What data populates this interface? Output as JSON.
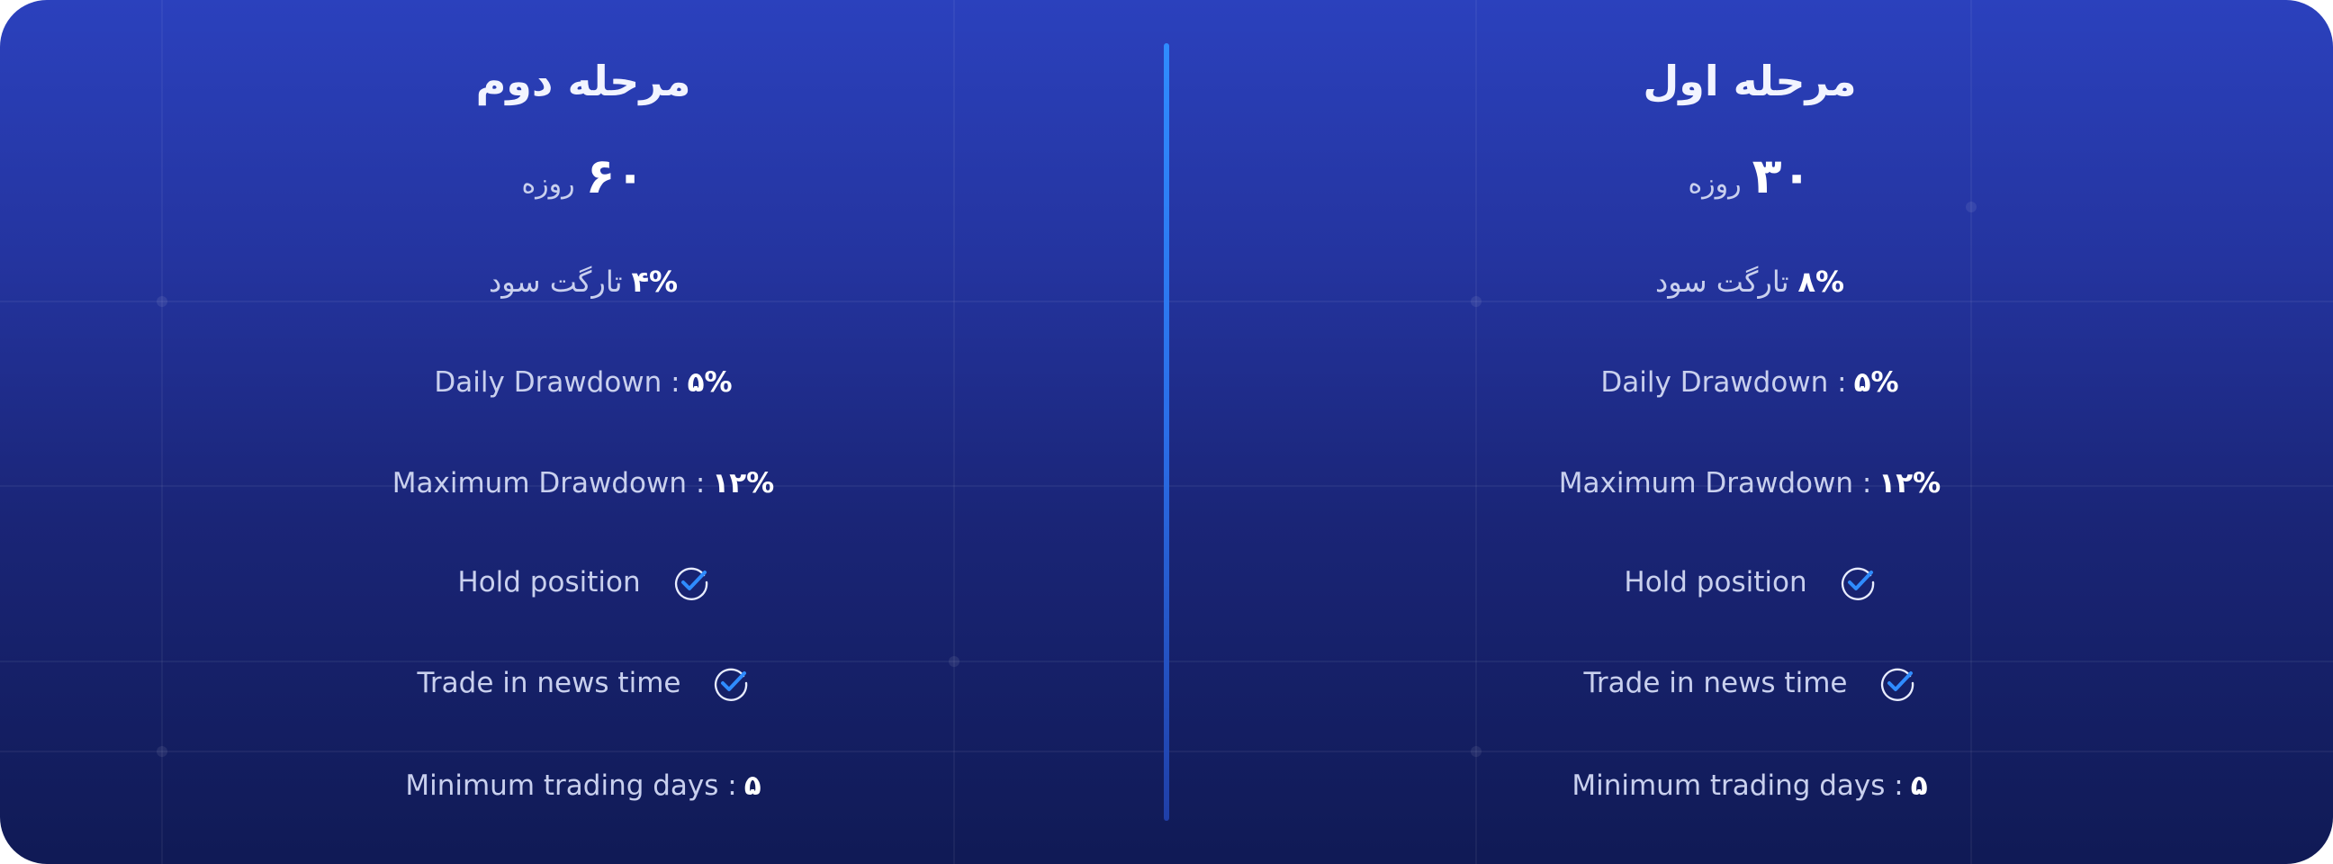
{
  "phases": [
    {
      "title": "مرحله دوم",
      "days_value": "۶۰",
      "days_unit": "روزه",
      "profit_target_value": "۴%",
      "profit_target_label": "تارگت سود",
      "daily_drawdown_label": "Daily Drawdown :",
      "daily_drawdown_value": "۵%",
      "max_drawdown_label": "Maximum Drawdown :",
      "max_drawdown_value": "۱۲%",
      "hold_position_label": "Hold position",
      "news_trading_label": "Trade in news time",
      "min_days_label": "Minimum trading days :",
      "min_days_value": "۵"
    },
    {
      "title": "مرحله اول",
      "days_value": "۳۰",
      "days_unit": "روزه",
      "profit_target_value": "۸%",
      "profit_target_label": "تارگت سود",
      "daily_drawdown_label": "Daily Drawdown :",
      "daily_drawdown_value": "۵%",
      "max_drawdown_label": "Maximum Drawdown :",
      "max_drawdown_value": "۱۲%",
      "hold_position_label": "Hold position",
      "news_trading_label": "Trade in news time",
      "min_days_label": "Minimum trading days :",
      "min_days_value": "۵"
    }
  ],
  "icons": {
    "check": "check-circle-icon"
  },
  "colors": {
    "background_top": "#2b41bd",
    "background_bottom": "#101a55",
    "divider": "#2f8cff",
    "check_accent": "#2f8cff"
  }
}
